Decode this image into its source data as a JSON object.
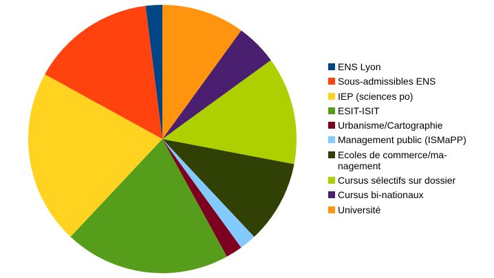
{
  "chart_data": {
    "type": "pie",
    "categories": [
      "ENS Lyon",
      "Sous-admissibles ENS",
      "IEP (sciences po)",
      "ESIT-ISIT",
      "Urbanisme/Cartographie",
      "Management public (ISMaPP)",
      "Ecoles de commerce/ma-\nnagement",
      "Cursus sélectifs sur dossier",
      "Cursus bi-nationaux",
      "Université"
    ],
    "values": [
      2,
      15,
      21,
      20,
      2,
      2,
      10,
      13,
      5,
      10
    ],
    "colors": [
      "#004586",
      "#ff420e",
      "#ffd320",
      "#579d1c",
      "#7e0021",
      "#83caff",
      "#314004",
      "#aecf00",
      "#4b1f6f",
      "#ff950e"
    ],
    "direction": "counterclockwise",
    "legend": "right"
  }
}
